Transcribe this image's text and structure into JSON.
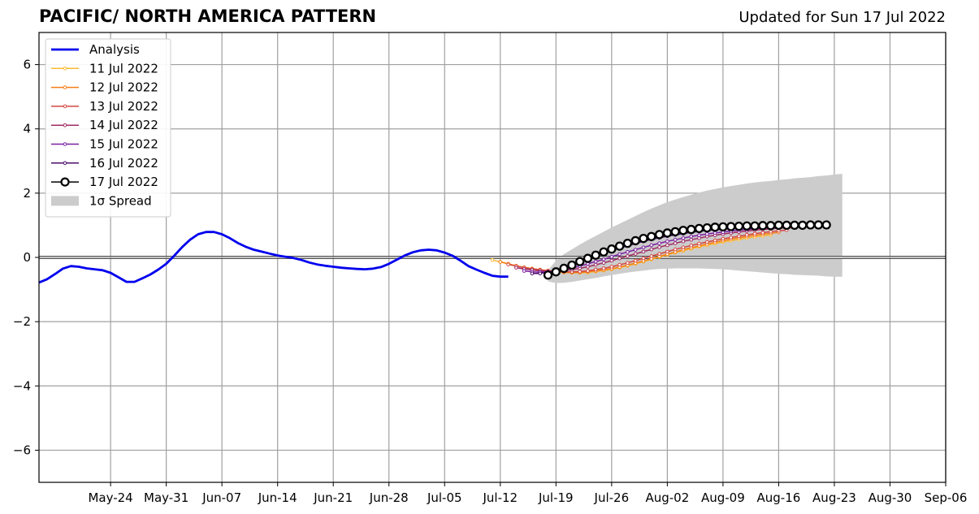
{
  "header": {
    "title": "PACIFIC/ NORTH AMERICA PATTERN",
    "updated": "Updated for Sun 17 Jul 2022"
  },
  "chart_data": {
    "type": "line",
    "title": "PACIFIC/ NORTH AMERICA PATTERN",
    "subtitle": "Updated for Sun 17 Jul 2022",
    "xlabel": "",
    "ylabel": "",
    "x_range": [
      "2022-05-15",
      "2022-09-06"
    ],
    "ylim": [
      -7,
      7
    ],
    "x_tick_labels": [
      "May-24",
      "May-31",
      "Jun-07",
      "Jun-14",
      "Jun-21",
      "Jun-28",
      "Jul-05",
      "Jul-12",
      "Jul-19",
      "Jul-26",
      "Aug-02",
      "Aug-09",
      "Aug-16",
      "Aug-23",
      "Aug-30",
      "Sep-06"
    ],
    "y_ticks": [
      -6,
      -4,
      -2,
      0,
      2,
      4,
      6
    ],
    "y_tick_labels": [
      "−6",
      "−4",
      "−2",
      "0",
      "2",
      "4",
      "6"
    ],
    "grid": true,
    "legend_position": "top-left",
    "series": [
      {
        "name": "Analysis",
        "color": "#0000ee",
        "style": "thick-line",
        "start_date": "2022-05-15",
        "values": [
          -0.78,
          -0.68,
          -0.52,
          -0.35,
          -0.27,
          -0.29,
          -0.34,
          -0.37,
          -0.4,
          -0.48,
          -0.62,
          -0.76,
          -0.76,
          -0.65,
          -0.53,
          -0.38,
          -0.2,
          0.05,
          0.32,
          0.55,
          0.72,
          0.79,
          0.79,
          0.72,
          0.6,
          0.45,
          0.33,
          0.24,
          0.18,
          0.12,
          0.06,
          0.02,
          -0.02,
          -0.08,
          -0.16,
          -0.22,
          -0.26,
          -0.29,
          -0.32,
          -0.34,
          -0.36,
          -0.37,
          -0.35,
          -0.3,
          -0.2,
          -0.07,
          0.06,
          0.16,
          0.22,
          0.24,
          0.22,
          0.15,
          0.05,
          -0.1,
          -0.27,
          -0.38,
          -0.48,
          -0.57,
          -0.6,
          -0.6
        ]
      },
      {
        "name": "11 Jul 2022",
        "color": "#f9b932",
        "style": "dots",
        "start_date": "2022-07-11",
        "values": [
          -0.08,
          -0.14,
          -0.2,
          -0.26,
          -0.31,
          -0.35,
          -0.39,
          -0.42,
          -0.45,
          -0.47,
          -0.48,
          -0.48,
          -0.47,
          -0.44,
          -0.41,
          -0.37,
          -0.32,
          -0.26,
          -0.2,
          -0.13,
          -0.06,
          0.01,
          0.08,
          0.15,
          0.21,
          0.27,
          0.33,
          0.38,
          0.43,
          0.48,
          0.52,
          0.56,
          0.6,
          0.64,
          0.67,
          0.7
        ]
      },
      {
        "name": "12 Jul 2022",
        "color": "#f57d15",
        "style": "dots",
        "start_date": "2022-07-12",
        "values": [
          -0.14,
          -0.2,
          -0.26,
          -0.31,
          -0.35,
          -0.38,
          -0.41,
          -0.44,
          -0.46,
          -0.47,
          -0.47,
          -0.45,
          -0.42,
          -0.39,
          -0.35,
          -0.3,
          -0.24,
          -0.18,
          -0.11,
          -0.04,
          0.03,
          0.1,
          0.17,
          0.24,
          0.3,
          0.36,
          0.42,
          0.47,
          0.52,
          0.57,
          0.61,
          0.65,
          0.69,
          0.72,
          0.75,
          0.78
        ]
      },
      {
        "name": "13 Jul 2022",
        "color": "#d44842",
        "style": "dots",
        "start_date": "2022-07-13",
        "values": [
          -0.22,
          -0.27,
          -0.32,
          -0.36,
          -0.39,
          -0.42,
          -0.44,
          -0.45,
          -0.45,
          -0.44,
          -0.42,
          -0.38,
          -0.34,
          -0.29,
          -0.23,
          -0.17,
          -0.1,
          -0.03,
          0.04,
          0.11,
          0.18,
          0.25,
          0.31,
          0.37,
          0.43,
          0.48,
          0.53,
          0.58,
          0.62,
          0.66,
          0.7,
          0.74,
          0.77,
          0.8,
          0.83,
          0.85
        ]
      },
      {
        "name": "14 Jul 2022",
        "color": "#9f2a63",
        "style": "dots",
        "start_date": "2022-07-14",
        "values": [
          -0.32,
          -0.36,
          -0.39,
          -0.42,
          -0.43,
          -0.43,
          -0.41,
          -0.38,
          -0.34,
          -0.29,
          -0.23,
          -0.17,
          -0.1,
          -0.03,
          0.04,
          0.11,
          0.18,
          0.25,
          0.32,
          0.38,
          0.44,
          0.5,
          0.55,
          0.6,
          0.65,
          0.69,
          0.73,
          0.76,
          0.79,
          0.82,
          0.85,
          0.87,
          0.89,
          0.91,
          0.92,
          0.93
        ]
      },
      {
        "name": "15 Jul 2022",
        "color": "#7a1fa2",
        "style": "dots",
        "start_date": "2022-07-15",
        "values": [
          -0.42,
          -0.45,
          -0.46,
          -0.45,
          -0.42,
          -0.38,
          -0.33,
          -0.27,
          -0.2,
          -0.13,
          -0.06,
          0.02,
          0.1,
          0.17,
          0.24,
          0.31,
          0.38,
          0.44,
          0.5,
          0.55,
          0.6,
          0.65,
          0.69,
          0.73,
          0.76,
          0.79,
          0.82,
          0.85,
          0.87,
          0.89,
          0.91,
          0.92,
          0.93,
          0.94,
          0.95,
          0.96
        ]
      },
      {
        "name": "16 Jul 2022",
        "color": "#4a0c6b",
        "style": "dots",
        "start_date": "2022-07-16",
        "values": [
          -0.5,
          -0.5,
          -0.46,
          -0.4,
          -0.32,
          -0.23,
          -0.14,
          -0.05,
          0.04,
          0.13,
          0.21,
          0.29,
          0.36,
          0.43,
          0.5,
          0.56,
          0.61,
          0.66,
          0.7,
          0.74,
          0.78,
          0.81,
          0.84,
          0.86,
          0.88,
          0.9,
          0.92,
          0.93,
          0.94,
          0.95,
          0.96,
          0.96,
          0.97,
          0.97,
          0.98,
          0.98
        ]
      },
      {
        "name": "17 Jul 2022",
        "color": "#000000",
        "style": "circles",
        "start_date": "2022-07-18",
        "values": [
          -0.55,
          -0.45,
          -0.34,
          -0.24,
          -0.13,
          -0.03,
          0.07,
          0.17,
          0.26,
          0.35,
          0.44,
          0.52,
          0.59,
          0.65,
          0.71,
          0.76,
          0.8,
          0.84,
          0.87,
          0.9,
          0.92,
          0.94,
          0.95,
          0.96,
          0.97,
          0.98,
          0.98,
          0.99,
          0.99,
          1.0,
          1.0,
          1.0,
          1.0,
          1.01,
          1.01,
          1.01
        ]
      }
    ],
    "spread": {
      "name": "1σ Spread",
      "color": "#cccccc",
      "start_date": "2022-07-18",
      "upper": [
        -0.4,
        -0.1,
        0.1,
        0.25,
        0.4,
        0.54,
        0.67,
        0.8,
        0.93,
        1.05,
        1.17,
        1.29,
        1.41,
        1.52,
        1.62,
        1.72,
        1.8,
        1.88,
        1.95,
        2.02,
        2.08,
        2.13,
        2.18,
        2.22,
        2.26,
        2.3,
        2.33,
        2.36,
        2.38,
        2.41,
        2.43,
        2.46,
        2.48,
        2.5,
        2.53,
        2.55,
        2.58,
        2.6
      ],
      "lower": [
        -0.75,
        -0.8,
        -0.79,
        -0.76,
        -0.72,
        -0.68,
        -0.64,
        -0.59,
        -0.55,
        -0.51,
        -0.47,
        -0.44,
        -0.41,
        -0.38,
        -0.36,
        -0.35,
        -0.34,
        -0.34,
        -0.34,
        -0.34,
        -0.35,
        -0.36,
        -0.37,
        -0.39,
        -0.41,
        -0.43,
        -0.45,
        -0.47,
        -0.49,
        -0.51,
        -0.52,
        -0.54,
        -0.55,
        -0.56,
        -0.57,
        -0.59,
        -0.6,
        -0.6
      ]
    }
  }
}
